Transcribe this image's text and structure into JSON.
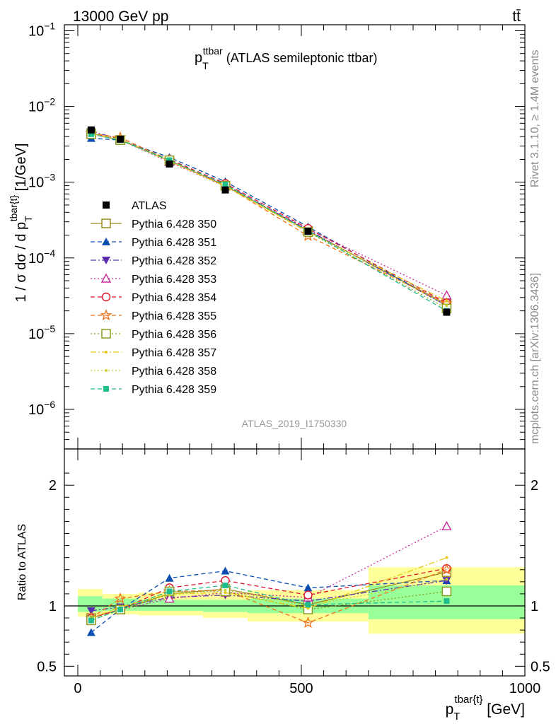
{
  "header": {
    "beam": "13000 GeV pp",
    "process": "tt̄"
  },
  "side_text": {
    "rivet": "Rivet 3.1.10, ≥ 1.4M events",
    "source": "mcplots.cern.ch [arXiv:1306.3436]"
  },
  "analysis_id": "ATLAS_2019_I1750330",
  "colors": {
    "data": "#000000",
    "band_inner": "#99ff99",
    "band_outer": "#ffff99"
  },
  "chart_data": [
    {
      "type": "line",
      "title_main": "p",
      "title_sub": "T",
      "title_sup": "ttbar",
      "title_rest": " (ATLAS semileptonic ttbar)",
      "ylabel": "1 / σ dσ / d p",
      "ylabel_sub": "T",
      "ylabel_sup": "tbar{t}",
      "ylabel_unit": " [1/GeV]",
      "yscale": "log",
      "ylim": [
        3e-07,
        0.12
      ],
      "xlim": [
        -30,
        1000
      ],
      "yticks": [
        {
          "v": 0.1,
          "m": "10",
          "e": "−1"
        },
        {
          "v": 0.01,
          "m": "10",
          "e": "−2"
        },
        {
          "v": 0.001,
          "m": "10",
          "e": "−3"
        },
        {
          "v": 0.0001,
          "m": "10",
          "e": "−4"
        },
        {
          "v": 1e-05,
          "m": "10",
          "e": "−5"
        },
        {
          "v": 1e-06,
          "m": "10",
          "e": "−6"
        }
      ],
      "x": [
        30,
        95,
        205,
        330,
        515,
        825
      ],
      "data": {
        "name": "ATLAS",
        "values": [
          0.0049,
          0.0037,
          0.00174,
          0.00079,
          0.000225,
          1.92e-05
        ]
      },
      "series": [
        {
          "name": "Pythia 6.428 350",
          "color": "#9a8c1e",
          "marker": "square-open",
          "dash": "",
          "values": [
            0.0044,
            0.0036,
            0.00192,
            0.0009,
            0.000228,
            2.45e-05
          ]
        },
        {
          "name": "Pythia 6.428 351",
          "color": "#0b4eb0",
          "marker": "triangle-up",
          "dash": "6,4",
          "values": [
            0.0038,
            0.0036,
            0.00213,
            0.00102,
            0.000258,
            2.32e-05
          ]
        },
        {
          "name": "Pythia 6.428 352",
          "color": "#5a2db0",
          "marker": "triangle-down",
          "dash": "8,3,2,3",
          "values": [
            0.0047,
            0.0037,
            0.0019,
            0.00093,
            0.000232,
            2.35e-05
          ]
        },
        {
          "name": "Pythia 6.428 353",
          "color": "#c8289a",
          "marker": "triangle-open",
          "dash": "2,3",
          "values": [
            0.0044,
            0.0036,
            0.00185,
            0.00088,
            0.00024,
            3.2e-05
          ]
        },
        {
          "name": "Pythia 6.428 354",
          "color": "#e0142d",
          "marker": "circle-open",
          "dash": "6,4",
          "values": [
            0.0044,
            0.0036,
            0.002,
            0.00096,
            0.000245,
            2.55e-05
          ]
        },
        {
          "name": "Pythia 6.428 355",
          "color": "#f07014",
          "marker": "star",
          "dash": "6,4",
          "values": [
            0.0044,
            0.0039,
            0.00195,
            0.0009,
            0.000195,
            2.5e-05
          ]
        },
        {
          "name": "Pythia 6.428 356",
          "color": "#8c9e1e",
          "marker": "square-open",
          "dash": "2,3",
          "values": [
            0.0043,
            0.0036,
            0.00195,
            0.0009,
            0.00022,
            2.15e-05
          ]
        },
        {
          "name": "Pythia 6.428 357",
          "color": "#e6c814",
          "marker": "dot",
          "dash": "8,3,2,3",
          "values": [
            0.0044,
            0.0037,
            0.0019,
            0.00088,
            0.00022,
            2.7e-05
          ]
        },
        {
          "name": "Pythia 6.428 358",
          "color": "#c8d232",
          "marker": "dot",
          "dash": "2,3",
          "values": [
            0.0043,
            0.0036,
            0.0019,
            0.0009,
            0.000225,
            2.35e-05
          ]
        },
        {
          "name": "Pythia 6.428 359",
          "color": "#1ebe8c",
          "marker": "square",
          "dash": "6,4",
          "values": [
            0.0043,
            0.0036,
            0.00195,
            0.00093,
            0.000228,
            2e-05
          ]
        }
      ]
    },
    {
      "type": "line",
      "ylabel": "Ratio to ATLAS",
      "xlabel": "p",
      "xlabel_sub": "T",
      "xlabel_sup": "tbar{t}",
      "xlabel_unit": " [GeV]",
      "ylim": [
        0.42,
        2.3
      ],
      "xlim": [
        -30,
        1000
      ],
      "yticks": [
        {
          "v": 0.5,
          "t": "0.5"
        },
        {
          "v": 1,
          "t": "1"
        },
        {
          "v": 2,
          "t": "2"
        }
      ],
      "xticks": [
        {
          "v": 0,
          "t": "0"
        },
        {
          "v": 500,
          "t": "500"
        },
        {
          "v": 1000,
          "t": "1000"
        }
      ],
      "bins": [
        {
          "lo": 0,
          "hi": 55,
          "inner": [
            0.95,
            1.08
          ],
          "outer": [
            0.91,
            1.14
          ]
        },
        {
          "lo": 55,
          "hi": 135,
          "inner": [
            0.96,
            1.06
          ],
          "outer": [
            0.93,
            1.1
          ]
        },
        {
          "lo": 135,
          "hi": 280,
          "inner": [
            0.96,
            1.05
          ],
          "outer": [
            0.92,
            1.11
          ]
        },
        {
          "lo": 280,
          "hi": 380,
          "inner": [
            0.95,
            1.05
          ],
          "outer": [
            0.9,
            1.11
          ]
        },
        {
          "lo": 380,
          "hi": 650,
          "inner": [
            0.94,
            1.06
          ],
          "outer": [
            0.87,
            1.13
          ]
        },
        {
          "lo": 650,
          "hi": 1000,
          "inner": [
            0.89,
            1.17
          ],
          "outer": [
            0.77,
            1.32
          ]
        }
      ],
      "x": [
        30,
        95,
        205,
        330,
        515,
        825
      ],
      "series": [
        {
          "name": "Pythia 6.428 350",
          "values": [
            0.9,
            0.97,
            1.1,
            1.14,
            1.01,
            1.28
          ]
        },
        {
          "name": "Pythia 6.428 351",
          "values": [
            0.78,
            0.97,
            1.23,
            1.29,
            1.15,
            1.21
          ]
        },
        {
          "name": "Pythia 6.428 352",
          "values": [
            0.96,
            0.99,
            1.07,
            1.09,
            1.04,
            1.21
          ]
        },
        {
          "name": "Pythia 6.428 353",
          "values": [
            0.9,
            0.97,
            1.06,
            1.11,
            1.07,
            1.66
          ]
        },
        {
          "name": "Pythia 6.428 354",
          "values": [
            0.9,
            0.97,
            1.15,
            1.21,
            1.09,
            1.31
          ]
        },
        {
          "name": "Pythia 6.428 355",
          "values": [
            0.9,
            1.06,
            1.12,
            1.13,
            0.86,
            1.3
          ]
        },
        {
          "name": "Pythia 6.428 356",
          "values": [
            0.88,
            0.97,
            1.12,
            1.12,
            0.97,
            1.12
          ]
        },
        {
          "name": "Pythia 6.428 357",
          "values": [
            0.9,
            0.99,
            1.1,
            1.11,
            0.98,
            1.4
          ]
        },
        {
          "name": "Pythia 6.428 358",
          "values": [
            0.88,
            0.97,
            1.09,
            1.13,
            1.0,
            1.22
          ]
        },
        {
          "name": "Pythia 6.428 359",
          "values": [
            0.88,
            0.97,
            1.12,
            1.17,
            1.01,
            1.04
          ]
        }
      ]
    }
  ]
}
